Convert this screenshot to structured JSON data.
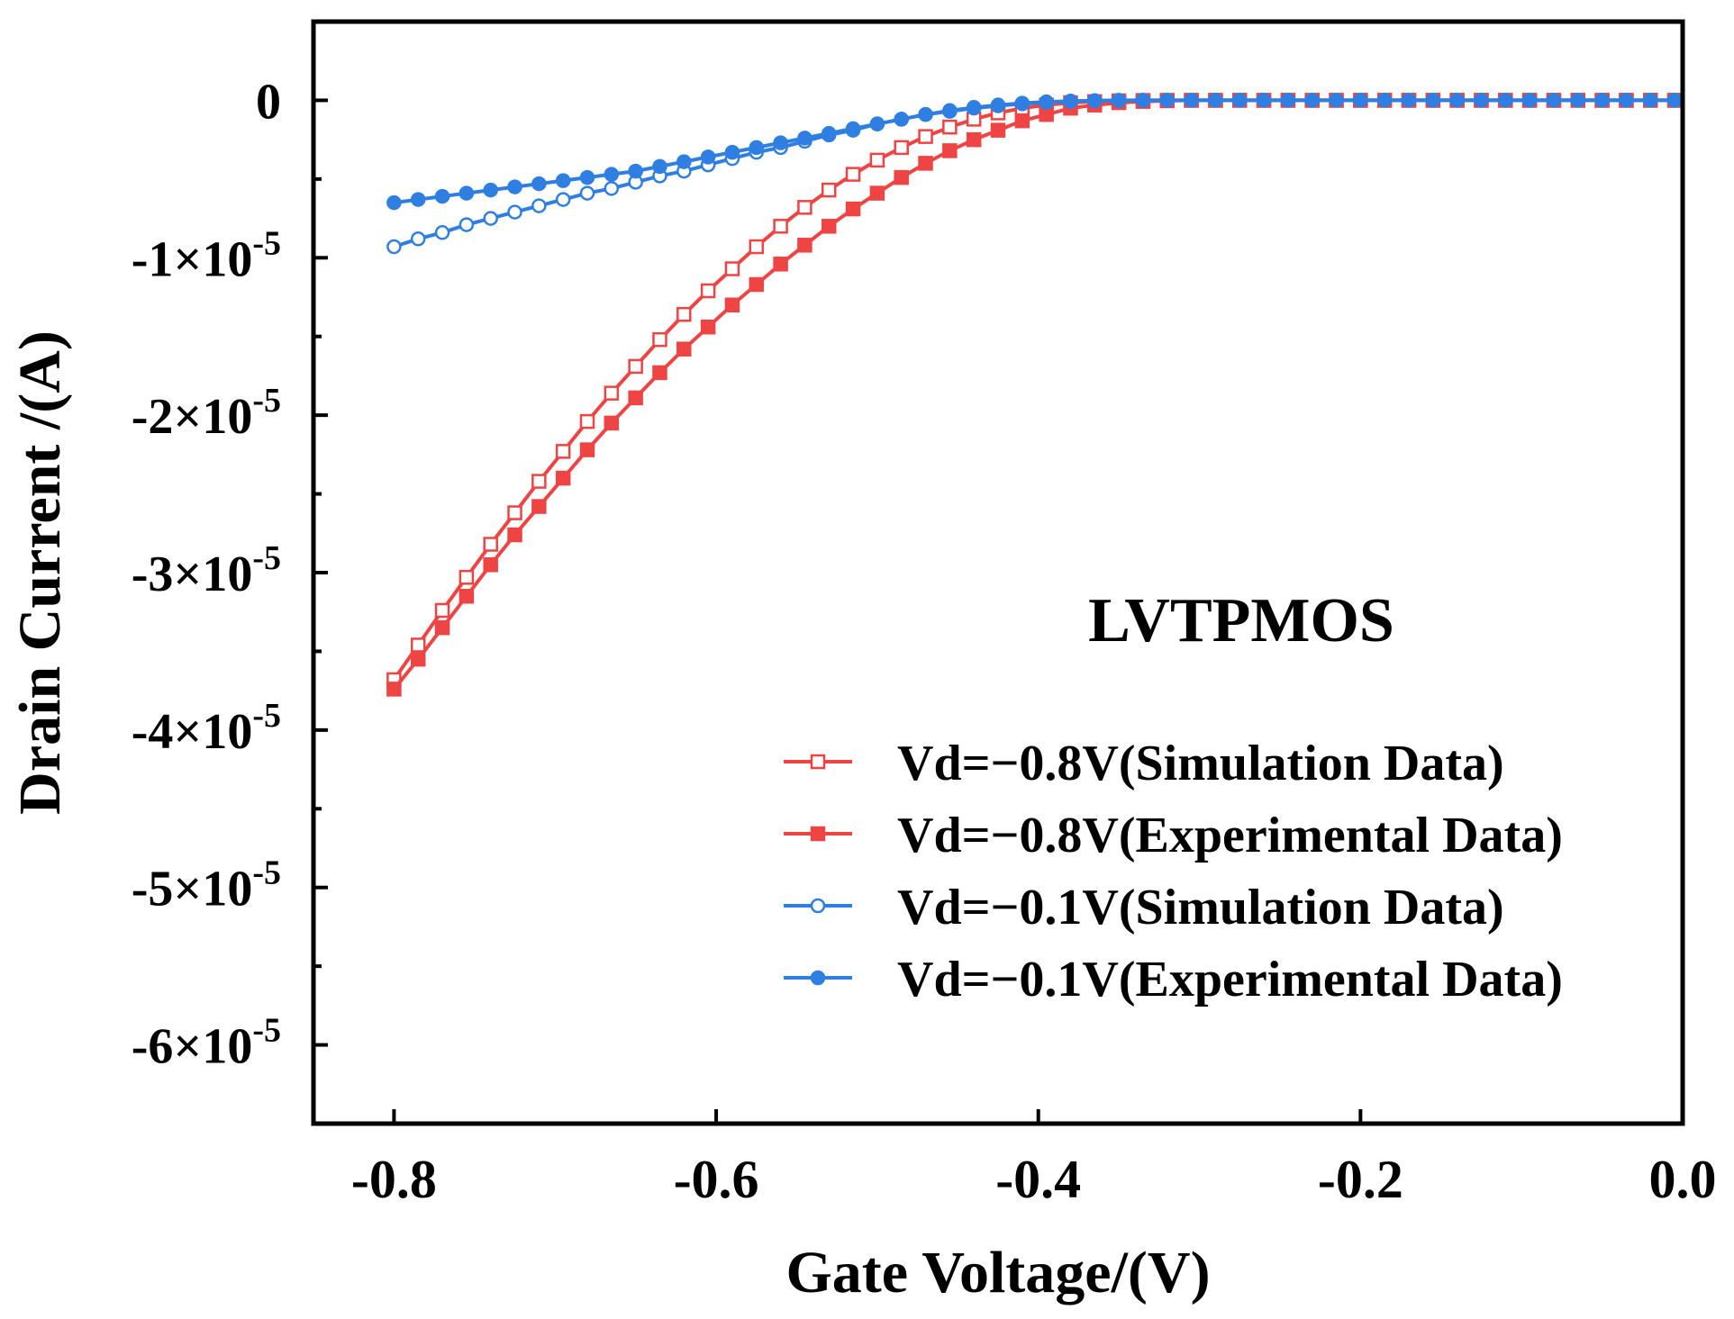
{
  "chart_data": {
    "type": "line",
    "title": "",
    "annotation": "LVTPMOS",
    "xlabel": "Gate Voltage/(V)",
    "ylabel": "Drain Current /(A)",
    "xlim": [
      -0.85,
      0.0
    ],
    "ylim": [
      -6.5e-05,
      5e-06
    ],
    "x_ticks": [
      -0.8,
      -0.6,
      -0.4,
      -0.2,
      0.0
    ],
    "x_tick_labels": [
      "-0.8",
      "-0.6",
      "-0.4",
      "-0.2",
      "0.0"
    ],
    "y_ticks": [
      0,
      -1e-05,
      -2e-05,
      -3e-05,
      -4e-05,
      -5e-05,
      -6e-05
    ],
    "y_tick_labels": [
      {
        "base": "0",
        "exp": ""
      },
      {
        "base": "-1×10",
        "exp": "-5"
      },
      {
        "base": "-2×10",
        "exp": "-5"
      },
      {
        "base": "-3×10",
        "exp": "-5"
      },
      {
        "base": "-4×10",
        "exp": "-5"
      },
      {
        "base": "-5×10",
        "exp": "-5"
      },
      {
        "base": "-6×10",
        "exp": "-5"
      }
    ],
    "legend_position": "lower-right",
    "x_step": 0.015,
    "series": [
      {
        "name": "Vd=−0.8V(Simulation Data)",
        "color": "#ee4444",
        "marker": "square-open",
        "x": [
          -0.8,
          -0.785,
          -0.77,
          -0.755,
          -0.74,
          -0.725,
          -0.71,
          -0.695,
          -0.68,
          -0.665,
          -0.65,
          -0.635,
          -0.62,
          -0.605,
          -0.59,
          -0.575,
          -0.56,
          -0.545,
          -0.53,
          -0.515,
          -0.5,
          -0.485,
          -0.47,
          -0.455,
          -0.44,
          -0.425,
          -0.41,
          -0.395,
          -0.38,
          -0.365,
          -0.35,
          -0.335,
          -0.32,
          -0.305,
          -0.29,
          -0.275,
          -0.26,
          -0.245,
          -0.23,
          -0.215,
          -0.2,
          -0.185,
          -0.17,
          -0.155,
          -0.14,
          -0.125,
          -0.11,
          -0.095,
          -0.08,
          -0.065,
          -0.05,
          -0.035,
          -0.02,
          -0.005
        ],
        "values": [
          -3.68e-05,
          -3.46e-05,
          -3.24e-05,
          -3.03e-05,
          -2.82e-05,
          -2.62e-05,
          -2.42e-05,
          -2.23e-05,
          -2.04e-05,
          -1.86e-05,
          -1.69e-05,
          -1.52e-05,
          -1.36e-05,
          -1.21e-05,
          -1.07e-05,
          -9.3e-06,
          -8e-06,
          -6.8e-06,
          -5.7e-06,
          -4.7e-06,
          -3.8e-06,
          -3e-06,
          -2.3e-06,
          -1.7e-06,
          -1.2e-06,
          -8e-07,
          -5e-07,
          -3e-07,
          -1.5e-07,
          -8e-08,
          -3e-08,
          -1e-08,
          0,
          0,
          0,
          0,
          0,
          0,
          0,
          0,
          0,
          0,
          0,
          0,
          0,
          0,
          0,
          0,
          0,
          0,
          0,
          0,
          0,
          0
        ]
      },
      {
        "name": "Vd=−0.8V(Experimental Data)",
        "color": "#ee4444",
        "marker": "square-filled",
        "x": [
          -0.8,
          -0.785,
          -0.77,
          -0.755,
          -0.74,
          -0.725,
          -0.71,
          -0.695,
          -0.68,
          -0.665,
          -0.65,
          -0.635,
          -0.62,
          -0.605,
          -0.59,
          -0.575,
          -0.56,
          -0.545,
          -0.53,
          -0.515,
          -0.5,
          -0.485,
          -0.47,
          -0.455,
          -0.44,
          -0.425,
          -0.41,
          -0.395,
          -0.38,
          -0.365,
          -0.35,
          -0.335,
          -0.32,
          -0.305,
          -0.29,
          -0.275,
          -0.26,
          -0.245,
          -0.23,
          -0.215,
          -0.2,
          -0.185,
          -0.17,
          -0.155,
          -0.14,
          -0.125,
          -0.11,
          -0.095,
          -0.08,
          -0.065,
          -0.05,
          -0.035,
          -0.02,
          -0.005
        ],
        "values": [
          -3.74e-05,
          -3.55e-05,
          -3.35e-05,
          -3.15e-05,
          -2.95e-05,
          -2.76e-05,
          -2.58e-05,
          -2.4e-05,
          -2.22e-05,
          -2.05e-05,
          -1.89e-05,
          -1.73e-05,
          -1.58e-05,
          -1.44e-05,
          -1.3e-05,
          -1.17e-05,
          -1.04e-05,
          -9.2e-06,
          -8e-06,
          -6.9e-06,
          -5.9e-06,
          -4.9e-06,
          -4e-06,
          -3.2e-06,
          -2.5e-06,
          -1.9e-06,
          -1.3e-06,
          -9e-07,
          -5e-07,
          -3e-07,
          -1.5e-07,
          -7e-08,
          -3e-08,
          0,
          0,
          0,
          0,
          0,
          0,
          0,
          0,
          0,
          0,
          0,
          0,
          0,
          0,
          0,
          0,
          0,
          0,
          0,
          0,
          0
        ]
      },
      {
        "name": "Vd=−0.1V(Simulation Data)",
        "color": "#2f7fe3",
        "marker": "circle-open",
        "x": [
          -0.8,
          -0.785,
          -0.77,
          -0.755,
          -0.74,
          -0.725,
          -0.71,
          -0.695,
          -0.68,
          -0.665,
          -0.65,
          -0.635,
          -0.62,
          -0.605,
          -0.59,
          -0.575,
          -0.56,
          -0.545,
          -0.53,
          -0.515,
          -0.5,
          -0.485,
          -0.47,
          -0.455,
          -0.44,
          -0.425,
          -0.41,
          -0.395,
          -0.38,
          -0.365,
          -0.35,
          -0.335,
          -0.32,
          -0.305,
          -0.29,
          -0.275,
          -0.26,
          -0.245,
          -0.23,
          -0.215,
          -0.2,
          -0.185,
          -0.17,
          -0.155,
          -0.14,
          -0.125,
          -0.11,
          -0.095,
          -0.08,
          -0.065,
          -0.05,
          -0.035,
          -0.02,
          -0.005
        ],
        "values": [
          -9.3e-06,
          -8.8e-06,
          -8.4e-06,
          -7.9e-06,
          -7.5e-06,
          -7.1e-06,
          -6.7e-06,
          -6.3e-06,
          -5.9e-06,
          -5.6e-06,
          -5.2e-06,
          -4.8e-06,
          -4.5e-06,
          -4.1e-06,
          -3.7e-06,
          -3.3e-06,
          -3e-06,
          -2.6e-06,
          -2.2e-06,
          -1.9e-06,
          -1.5e-06,
          -1.2e-06,
          -9e-07,
          -6.5e-07,
          -4.5e-07,
          -3e-07,
          -1.8e-07,
          -1e-07,
          -5e-08,
          -2e-08,
          0,
          0,
          0,
          0,
          0,
          0,
          0,
          0,
          0,
          0,
          0,
          0,
          0,
          0,
          0,
          0,
          0,
          0,
          0,
          0,
          0,
          0,
          0,
          0
        ]
      },
      {
        "name": "Vd=−0.1V(Experimental Data)",
        "color": "#2f7fe3",
        "marker": "circle-filled",
        "x": [
          -0.8,
          -0.785,
          -0.77,
          -0.755,
          -0.74,
          -0.725,
          -0.71,
          -0.695,
          -0.68,
          -0.665,
          -0.65,
          -0.635,
          -0.62,
          -0.605,
          -0.59,
          -0.575,
          -0.56,
          -0.545,
          -0.53,
          -0.515,
          -0.5,
          -0.485,
          -0.47,
          -0.455,
          -0.44,
          -0.425,
          -0.41,
          -0.395,
          -0.38,
          -0.365,
          -0.35,
          -0.335,
          -0.32,
          -0.305,
          -0.29,
          -0.275,
          -0.26,
          -0.245,
          -0.23,
          -0.215,
          -0.2,
          -0.185,
          -0.17,
          -0.155,
          -0.14,
          -0.125,
          -0.11,
          -0.095,
          -0.08,
          -0.065,
          -0.05,
          -0.035,
          -0.02,
          -0.005
        ],
        "values": [
          -6.5e-06,
          -6.3e-06,
          -6.1e-06,
          -5.9e-06,
          -5.7e-06,
          -5.5e-06,
          -5.3e-06,
          -5.1e-06,
          -4.9e-06,
          -4.7e-06,
          -4.5e-06,
          -4.2e-06,
          -3.9e-06,
          -3.6e-06,
          -3.3e-06,
          -3e-06,
          -2.7e-06,
          -2.4e-06,
          -2.1e-06,
          -1.8e-06,
          -1.5e-06,
          -1.2e-06,
          -9e-07,
          -7e-07,
          -5e-07,
          -3.5e-07,
          -2.2e-07,
          -1.3e-07,
          -7e-08,
          -3e-08,
          -1e-08,
          0,
          0,
          0,
          0,
          0,
          0,
          0,
          0,
          0,
          0,
          0,
          0,
          0,
          0,
          0,
          0,
          0,
          0,
          0,
          0,
          0,
          0,
          0
        ]
      }
    ]
  }
}
